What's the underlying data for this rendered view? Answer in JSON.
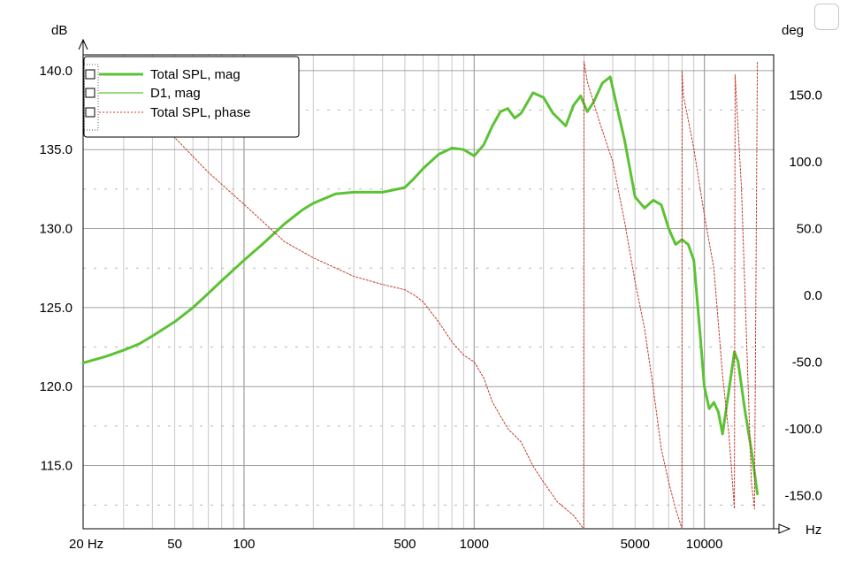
{
  "chart_data": {
    "type": "line",
    "title": "",
    "xlabel": "Hz",
    "ylabel": "dB",
    "y2label": "deg",
    "xscale": "log",
    "xlim": [
      20,
      20000
    ],
    "ylim": [
      111,
      141
    ],
    "y2lim": [
      -175,
      180
    ],
    "grid": true,
    "legend_position": "top-left",
    "x_tick_labels": [
      "20 Hz",
      "50",
      "100",
      "500",
      "1000",
      "5000",
      "10000"
    ],
    "x_tick_values": [
      20,
      50,
      100,
      500,
      1000,
      5000,
      10000
    ],
    "y_tick_labels": [
      "115.0",
      "120.0",
      "125.0",
      "130.0",
      "135.0",
      "140.0"
    ],
    "y_tick_values": [
      115,
      120,
      125,
      130,
      135,
      140
    ],
    "y2_tick_labels": [
      "-150.0",
      "-100.0",
      "-50.0",
      "0.0",
      "50.0",
      "100.0",
      "150.0"
    ],
    "y2_tick_values": [
      -150,
      -100,
      -50,
      0,
      50,
      100,
      150
    ],
    "colors": {
      "spl": "#5cc234",
      "d1": "#5cc234",
      "phase": "#c0392b",
      "grid_major": "#a0a0a0",
      "grid_minor": "#c8c8c8"
    },
    "series": [
      {
        "name": "Total SPL, mag",
        "axis": "left",
        "style": "thick",
        "x": [
          20,
          25,
          30,
          35,
          40,
          50,
          60,
          70,
          80,
          100,
          120,
          150,
          180,
          200,
          250,
          300,
          400,
          500,
          550,
          600,
          700,
          800,
          900,
          1000,
          1100,
          1200,
          1300,
          1400,
          1500,
          1600,
          1800,
          2000,
          2200,
          2500,
          2700,
          2900,
          3100,
          3300,
          3600,
          3900,
          4200,
          4500,
          5000,
          5500,
          6000,
          6500,
          7000,
          7500,
          8000,
          8500,
          9000,
          9500,
          10000,
          10500,
          11000,
          11500,
          12000,
          13000,
          13500,
          14000,
          15000,
          16000,
          17000
        ],
        "y": [
          121.5,
          121.9,
          122.3,
          122.7,
          123.2,
          124.1,
          125.0,
          125.9,
          126.7,
          128.0,
          129.0,
          130.3,
          131.2,
          131.6,
          132.2,
          132.3,
          132.3,
          132.6,
          133.2,
          133.8,
          134.7,
          135.1,
          135.0,
          134.6,
          135.3,
          136.5,
          137.4,
          137.6,
          137.0,
          137.3,
          138.6,
          138.3,
          137.3,
          136.5,
          137.8,
          138.4,
          137.4,
          138.0,
          139.2,
          139.6,
          137.5,
          135.6,
          132.0,
          131.3,
          131.8,
          131.5,
          130.0,
          129.0,
          129.3,
          129.0,
          128.0,
          124.0,
          120.0,
          118.6,
          119.0,
          118.4,
          117.0,
          120.5,
          122.2,
          121.6,
          118.5,
          116.0,
          113.2
        ]
      },
      {
        "name": "D1, mag",
        "axis": "left",
        "style": "thin",
        "x": [],
        "y": []
      },
      {
        "name": "Total SPL, phase",
        "axis": "right",
        "style": "dotted",
        "x": [
          35,
          40,
          50,
          70,
          100,
          150,
          200,
          300,
          400,
          500,
          550,
          600,
          700,
          800,
          900,
          1000,
          1100,
          1200,
          1400,
          1600,
          1800,
          2000,
          2300,
          2700,
          2990,
          3000,
          3100,
          3500,
          4000,
          4500,
          5000,
          5500,
          6000,
          6500,
          7000,
          7500,
          7990,
          8000,
          8100,
          9000,
          10000,
          11000,
          12000,
          12800,
          13500,
          13600,
          14500,
          16000,
          16500,
          17000
        ],
        "y": [
          145,
          130,
          118,
          92,
          68,
          40,
          28,
          14,
          8,
          4,
          0,
          -5,
          -20,
          -35,
          -45,
          -50,
          -62,
          -80,
          -100,
          -110,
          -128,
          -140,
          -155,
          -165,
          -175,
          175,
          160,
          130,
          100,
          55,
          10,
          -25,
          -70,
          -115,
          -140,
          -160,
          -175,
          168,
          150,
          110,
          60,
          20,
          -60,
          -105,
          -160,
          165,
          80,
          -140,
          -160,
          175
        ]
      }
    ]
  }
}
